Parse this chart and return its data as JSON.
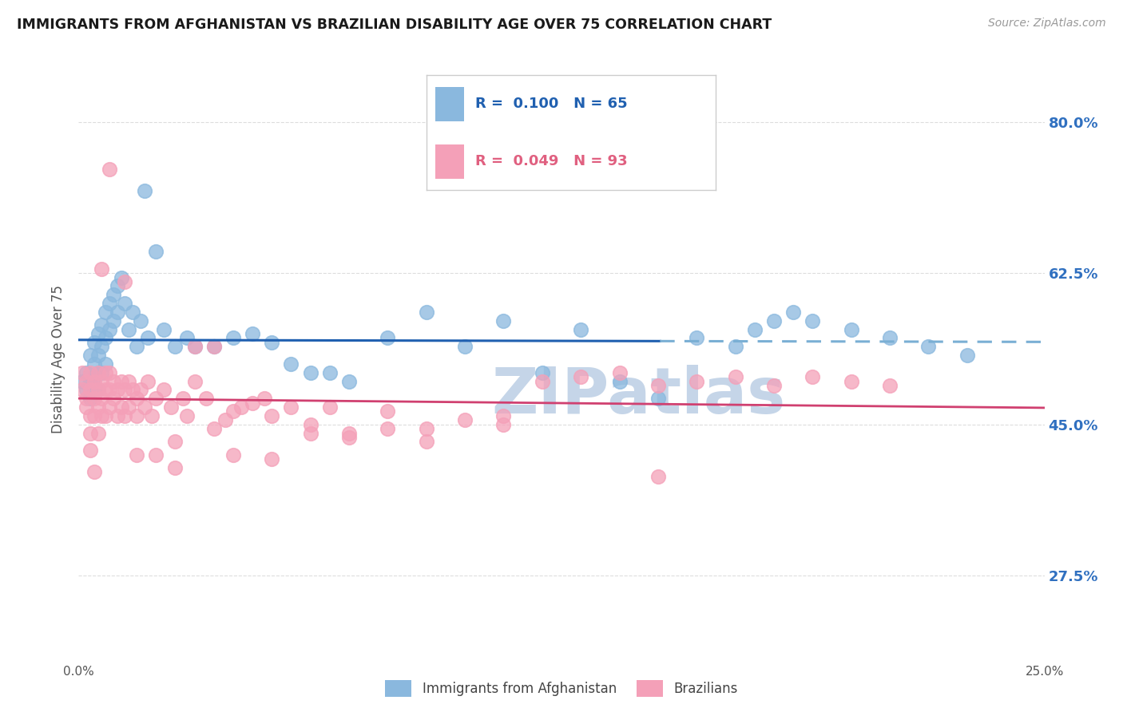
{
  "title": "IMMIGRANTS FROM AFGHANISTAN VS BRAZILIAN DISABILITY AGE OVER 75 CORRELATION CHART",
  "source": "Source: ZipAtlas.com",
  "ylabel": "Disability Age Over 75",
  "ytick_labels": [
    "27.5%",
    "45.0%",
    "62.5%",
    "80.0%"
  ],
  "ytick_values": [
    0.275,
    0.45,
    0.625,
    0.8
  ],
  "xlim": [
    0.0,
    0.25
  ],
  "ylim": [
    0.175,
    0.875
  ],
  "color_afg": "#8ab8de",
  "color_bra": "#f4a0b8",
  "trendline_afg_solid_color": "#2060b0",
  "trendline_afg_dash_color": "#7aafd4",
  "trendline_bra_color": "#d04070",
  "watermark_color": "#c5d5e8",
  "background_color": "#ffffff",
  "grid_color": "#dddddd",
  "legend_box_color": "#f0f0f0",
  "afg_x": [
    0.001,
    0.002,
    0.002,
    0.003,
    0.003,
    0.003,
    0.004,
    0.004,
    0.004,
    0.004,
    0.005,
    0.005,
    0.005,
    0.005,
    0.006,
    0.006,
    0.006,
    0.007,
    0.007,
    0.007,
    0.008,
    0.008,
    0.009,
    0.009,
    0.01,
    0.01,
    0.011,
    0.012,
    0.013,
    0.014,
    0.015,
    0.016,
    0.017,
    0.018,
    0.02,
    0.022,
    0.025,
    0.028,
    0.03,
    0.035,
    0.04,
    0.045,
    0.05,
    0.055,
    0.06,
    0.065,
    0.07,
    0.08,
    0.09,
    0.1,
    0.11,
    0.12,
    0.13,
    0.14,
    0.15,
    0.16,
    0.17,
    0.175,
    0.18,
    0.185,
    0.19,
    0.2,
    0.21,
    0.22,
    0.23
  ],
  "afg_y": [
    0.5,
    0.51,
    0.49,
    0.53,
    0.5,
    0.48,
    0.545,
    0.52,
    0.505,
    0.49,
    0.555,
    0.53,
    0.51,
    0.49,
    0.565,
    0.54,
    0.51,
    0.58,
    0.55,
    0.52,
    0.59,
    0.56,
    0.6,
    0.57,
    0.61,
    0.58,
    0.62,
    0.59,
    0.56,
    0.58,
    0.54,
    0.57,
    0.72,
    0.55,
    0.65,
    0.56,
    0.54,
    0.55,
    0.54,
    0.54,
    0.55,
    0.555,
    0.545,
    0.52,
    0.51,
    0.51,
    0.5,
    0.55,
    0.58,
    0.54,
    0.57,
    0.51,
    0.56,
    0.5,
    0.48,
    0.55,
    0.54,
    0.56,
    0.57,
    0.58,
    0.57,
    0.56,
    0.55,
    0.54,
    0.53
  ],
  "bra_x": [
    0.001,
    0.001,
    0.002,
    0.002,
    0.002,
    0.003,
    0.003,
    0.003,
    0.003,
    0.004,
    0.004,
    0.004,
    0.005,
    0.005,
    0.005,
    0.005,
    0.006,
    0.006,
    0.006,
    0.007,
    0.007,
    0.007,
    0.008,
    0.008,
    0.008,
    0.009,
    0.009,
    0.01,
    0.01,
    0.011,
    0.011,
    0.012,
    0.012,
    0.013,
    0.013,
    0.014,
    0.015,
    0.015,
    0.016,
    0.017,
    0.018,
    0.019,
    0.02,
    0.022,
    0.024,
    0.025,
    0.027,
    0.028,
    0.03,
    0.033,
    0.035,
    0.038,
    0.04,
    0.042,
    0.045,
    0.048,
    0.05,
    0.055,
    0.06,
    0.065,
    0.07,
    0.08,
    0.09,
    0.1,
    0.11,
    0.12,
    0.13,
    0.14,
    0.15,
    0.16,
    0.17,
    0.18,
    0.19,
    0.2,
    0.21,
    0.15,
    0.09,
    0.06,
    0.04,
    0.02,
    0.11,
    0.07,
    0.03,
    0.015,
    0.008,
    0.004,
    0.025,
    0.05,
    0.08,
    0.035,
    0.012,
    0.006,
    0.003
  ],
  "bra_y": [
    0.49,
    0.51,
    0.5,
    0.48,
    0.47,
    0.51,
    0.49,
    0.46,
    0.44,
    0.5,
    0.48,
    0.46,
    0.51,
    0.49,
    0.47,
    0.44,
    0.5,
    0.48,
    0.46,
    0.51,
    0.49,
    0.46,
    0.51,
    0.49,
    0.47,
    0.5,
    0.48,
    0.49,
    0.46,
    0.5,
    0.47,
    0.49,
    0.46,
    0.5,
    0.47,
    0.49,
    0.48,
    0.46,
    0.49,
    0.47,
    0.5,
    0.46,
    0.48,
    0.49,
    0.47,
    0.43,
    0.48,
    0.46,
    0.5,
    0.48,
    0.445,
    0.455,
    0.465,
    0.47,
    0.475,
    0.48,
    0.46,
    0.47,
    0.45,
    0.47,
    0.44,
    0.465,
    0.445,
    0.455,
    0.46,
    0.5,
    0.505,
    0.51,
    0.495,
    0.5,
    0.505,
    0.495,
    0.505,
    0.5,
    0.495,
    0.39,
    0.43,
    0.44,
    0.415,
    0.415,
    0.45,
    0.435,
    0.54,
    0.415,
    0.745,
    0.395,
    0.4,
    0.41,
    0.445,
    0.54,
    0.615,
    0.63,
    0.42
  ]
}
